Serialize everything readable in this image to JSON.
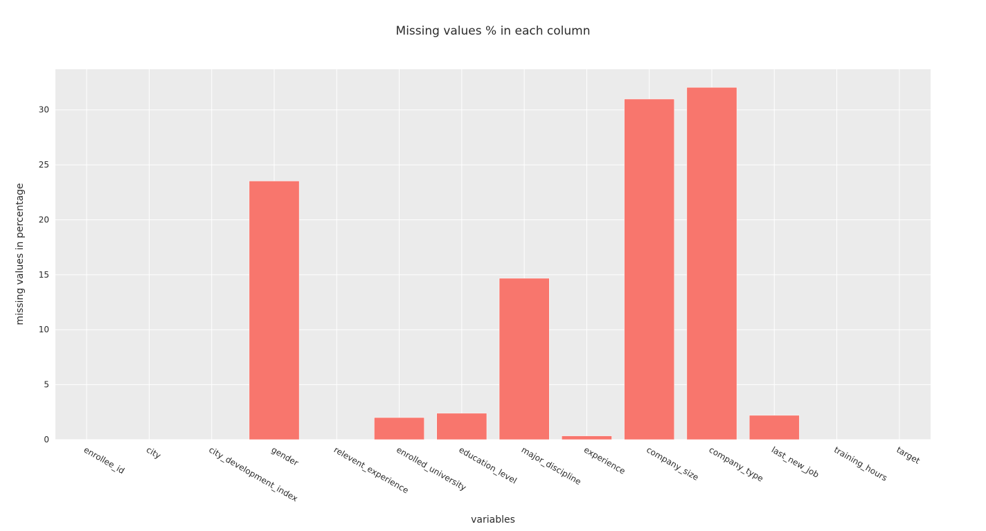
{
  "chart_data": {
    "type": "bar",
    "title": "Missing values % in each column",
    "xlabel": "variables",
    "ylabel": "missing values in percentage",
    "categories": [
      "enrollee_id",
      "city",
      "city_development_index",
      "gender",
      "relevent_experience",
      "enrolled_university",
      "education_level",
      "major_discipline",
      "experience",
      "company_size",
      "company_type",
      "last_new_job",
      "training_hours",
      "target"
    ],
    "values": [
      0,
      0,
      0,
      23.53,
      0,
      2.01,
      2.4,
      14.68,
      0.34,
      30.99,
      32.05,
      2.21,
      0,
      0
    ],
    "ylim": [
      0,
      33.7
    ],
    "yticks": [
      0,
      5,
      10,
      15,
      20,
      25,
      30
    ],
    "grid": true,
    "legend": "none",
    "colors": {
      "bar": "#f8766d",
      "plot_background": "#ebebeb",
      "grid": "#ffffff"
    }
  }
}
